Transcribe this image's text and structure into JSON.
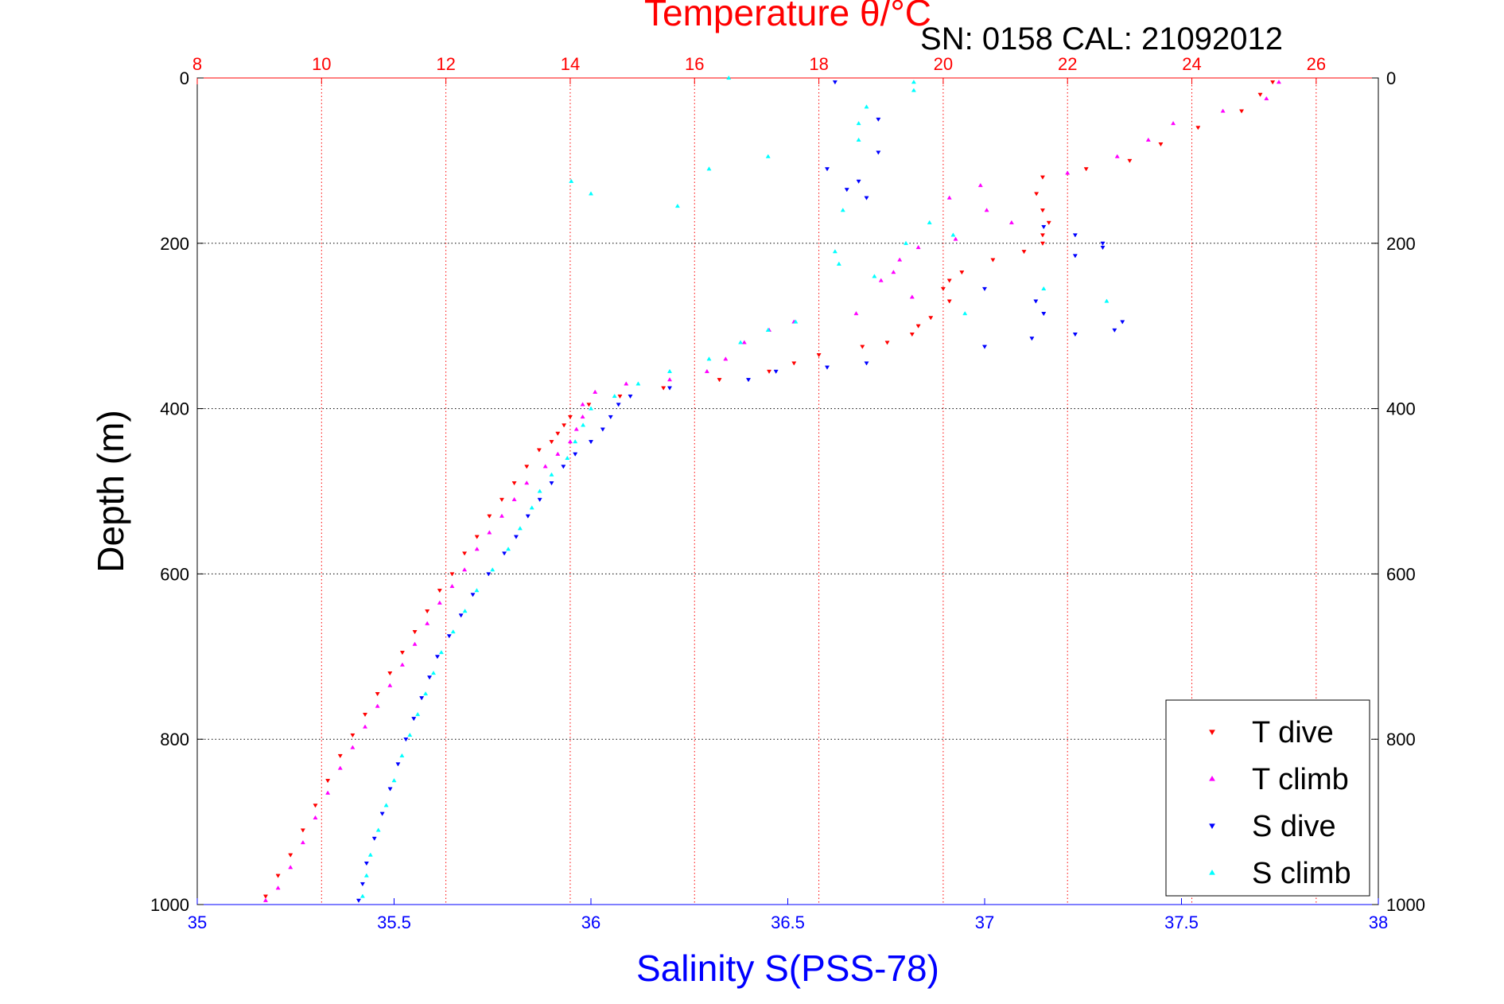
{
  "chart_data": {
    "type": "scatter",
    "title": "Temperature θ/°C",
    "subtitle": "SN: 0158  CAL: 21092012",
    "xlabel_top": "Temperature θ/°C",
    "xlabel_bottom": "Salinity S(PSS-78)",
    "ylabel": "Depth (m)",
    "temp_axis": {
      "range": [
        8,
        27
      ],
      "ticks": [
        8,
        10,
        12,
        14,
        16,
        18,
        20,
        22,
        24,
        26
      ],
      "tick_labels": [
        "8",
        "10",
        "12",
        "14",
        "16",
        "18",
        "20",
        "22",
        "24",
        "26"
      ]
    },
    "sal_axis": {
      "range": [
        35,
        38
      ],
      "ticks": [
        35,
        35.5,
        36,
        36.5,
        37,
        37.5,
        38
      ],
      "tick_labels": [
        "35",
        "35.5",
        "36",
        "36.5",
        "37",
        "37.5",
        "38"
      ]
    },
    "depth_axis": {
      "range": [
        0,
        1000
      ],
      "reversed": true,
      "ticks": [
        0,
        200,
        400,
        600,
        800,
        1000
      ],
      "tick_labels": [
        "0",
        "200",
        "400",
        "600",
        "800",
        "1000"
      ]
    },
    "grid": true,
    "legend_position": "bottom-right",
    "colors": {
      "temp_axis": "#ff0000",
      "sal_axis": "#0000ff",
      "t_dive": "#ff0000",
      "t_climb": "#ff00ff",
      "s_dive": "#0000ff",
      "s_climb": "#00ffff"
    },
    "series": [
      {
        "name": "T dive",
        "axis": "temperature",
        "marker": "triangle-down",
        "points": [
          [
            25.3,
            5
          ],
          [
            25.1,
            20
          ],
          [
            24.8,
            40
          ],
          [
            24.1,
            60
          ],
          [
            23.5,
            80
          ],
          [
            23.0,
            100
          ],
          [
            22.3,
            110
          ],
          [
            21.6,
            120
          ],
          [
            21.5,
            140
          ],
          [
            21.6,
            160
          ],
          [
            21.7,
            175
          ],
          [
            21.6,
            190
          ],
          [
            21.6,
            200
          ],
          [
            21.3,
            210
          ],
          [
            20.8,
            220
          ],
          [
            20.3,
            235
          ],
          [
            20.1,
            245
          ],
          [
            20.0,
            255
          ],
          [
            20.1,
            270
          ],
          [
            19.8,
            290
          ],
          [
            19.6,
            300
          ],
          [
            19.5,
            310
          ],
          [
            19.1,
            320
          ],
          [
            18.7,
            325
          ],
          [
            18.0,
            335
          ],
          [
            17.6,
            345
          ],
          [
            17.2,
            355
          ],
          [
            16.4,
            365
          ],
          [
            15.5,
            375
          ],
          [
            14.8,
            385
          ],
          [
            14.3,
            395
          ],
          [
            14.0,
            410
          ],
          [
            13.9,
            420
          ],
          [
            13.8,
            430
          ],
          [
            13.7,
            440
          ],
          [
            13.5,
            450
          ],
          [
            13.3,
            470
          ],
          [
            13.1,
            490
          ],
          [
            12.9,
            510
          ],
          [
            12.7,
            530
          ],
          [
            12.5,
            555
          ],
          [
            12.3,
            575
          ],
          [
            12.1,
            600
          ],
          [
            11.9,
            620
          ],
          [
            11.7,
            645
          ],
          [
            11.5,
            670
          ],
          [
            11.3,
            695
          ],
          [
            11.1,
            720
          ],
          [
            10.9,
            745
          ],
          [
            10.7,
            770
          ],
          [
            10.5,
            795
          ],
          [
            10.3,
            820
          ],
          [
            10.1,
            850
          ],
          [
            9.9,
            880
          ],
          [
            9.7,
            910
          ],
          [
            9.5,
            940
          ],
          [
            9.3,
            965
          ],
          [
            9.1,
            990
          ]
        ]
      },
      {
        "name": "T climb",
        "axis": "temperature",
        "marker": "triangle-up",
        "points": [
          [
            25.4,
            5
          ],
          [
            25.2,
            25
          ],
          [
            24.5,
            40
          ],
          [
            23.7,
            55
          ],
          [
            23.3,
            75
          ],
          [
            22.8,
            95
          ],
          [
            22.0,
            115
          ],
          [
            20.6,
            130
          ],
          [
            20.1,
            145
          ],
          [
            20.7,
            160
          ],
          [
            21.1,
            175
          ],
          [
            20.2,
            195
          ],
          [
            19.6,
            205
          ],
          [
            19.3,
            220
          ],
          [
            19.2,
            235
          ],
          [
            19.0,
            245
          ],
          [
            19.5,
            265
          ],
          [
            18.6,
            285
          ],
          [
            17.6,
            295
          ],
          [
            17.2,
            305
          ],
          [
            16.8,
            320
          ],
          [
            16.5,
            340
          ],
          [
            16.2,
            355
          ],
          [
            15.6,
            365
          ],
          [
            14.9,
            370
          ],
          [
            14.4,
            380
          ],
          [
            14.2,
            395
          ],
          [
            14.2,
            410
          ],
          [
            14.1,
            425
          ],
          [
            14.0,
            440
          ],
          [
            13.8,
            455
          ],
          [
            13.6,
            470
          ],
          [
            13.3,
            490
          ],
          [
            13.1,
            510
          ],
          [
            12.9,
            530
          ],
          [
            12.7,
            550
          ],
          [
            12.5,
            570
          ],
          [
            12.3,
            595
          ],
          [
            12.1,
            615
          ],
          [
            11.9,
            635
          ],
          [
            11.7,
            660
          ],
          [
            11.5,
            685
          ],
          [
            11.3,
            710
          ],
          [
            11.1,
            735
          ],
          [
            10.9,
            760
          ],
          [
            10.7,
            785
          ],
          [
            10.5,
            810
          ],
          [
            10.3,
            835
          ],
          [
            10.1,
            865
          ],
          [
            9.9,
            895
          ],
          [
            9.7,
            925
          ],
          [
            9.5,
            955
          ],
          [
            9.3,
            980
          ],
          [
            9.1,
            995
          ]
        ]
      },
      {
        "name": "S dive",
        "axis": "salinity",
        "marker": "triangle-down",
        "points": [
          [
            36.62,
            5
          ],
          [
            36.73,
            50
          ],
          [
            36.73,
            90
          ],
          [
            36.6,
            110
          ],
          [
            36.68,
            125
          ],
          [
            36.65,
            135
          ],
          [
            36.7,
            145
          ],
          [
            37.15,
            180
          ],
          [
            37.23,
            190
          ],
          [
            37.3,
            200
          ],
          [
            37.3,
            205
          ],
          [
            37.23,
            215
          ],
          [
            37.0,
            255
          ],
          [
            37.13,
            270
          ],
          [
            37.15,
            285
          ],
          [
            37.35,
            295
          ],
          [
            37.33,
            305
          ],
          [
            37.23,
            310
          ],
          [
            37.12,
            315
          ],
          [
            37.0,
            325
          ],
          [
            36.7,
            345
          ],
          [
            36.6,
            350
          ],
          [
            36.47,
            355
          ],
          [
            36.4,
            365
          ],
          [
            36.2,
            375
          ],
          [
            36.1,
            385
          ],
          [
            36.07,
            395
          ],
          [
            36.05,
            410
          ],
          [
            36.03,
            425
          ],
          [
            36.0,
            440
          ],
          [
            35.96,
            455
          ],
          [
            35.93,
            470
          ],
          [
            35.9,
            490
          ],
          [
            35.87,
            510
          ],
          [
            35.84,
            530
          ],
          [
            35.81,
            555
          ],
          [
            35.78,
            575
          ],
          [
            35.74,
            600
          ],
          [
            35.7,
            625
          ],
          [
            35.67,
            650
          ],
          [
            35.64,
            675
          ],
          [
            35.61,
            700
          ],
          [
            35.59,
            725
          ],
          [
            35.57,
            750
          ],
          [
            35.55,
            775
          ],
          [
            35.53,
            800
          ],
          [
            35.51,
            830
          ],
          [
            35.49,
            860
          ],
          [
            35.47,
            890
          ],
          [
            35.45,
            920
          ],
          [
            35.43,
            950
          ],
          [
            35.42,
            975
          ],
          [
            35.41,
            995
          ]
        ]
      },
      {
        "name": "S climb",
        "axis": "salinity",
        "marker": "triangle-up",
        "points": [
          [
            36.35,
            0
          ],
          [
            36.82,
            5
          ],
          [
            36.82,
            15
          ],
          [
            36.7,
            35
          ],
          [
            36.68,
            55
          ],
          [
            36.68,
            75
          ],
          [
            36.45,
            95
          ],
          [
            36.3,
            110
          ],
          [
            35.95,
            125
          ],
          [
            36.0,
            140
          ],
          [
            36.22,
            155
          ],
          [
            36.64,
            160
          ],
          [
            36.86,
            175
          ],
          [
            36.92,
            190
          ],
          [
            36.8,
            200
          ],
          [
            36.62,
            210
          ],
          [
            36.63,
            225
          ],
          [
            36.72,
            240
          ],
          [
            37.15,
            255
          ],
          [
            37.31,
            270
          ],
          [
            36.95,
            285
          ],
          [
            36.52,
            295
          ],
          [
            36.45,
            305
          ],
          [
            36.38,
            320
          ],
          [
            36.3,
            340
          ],
          [
            36.2,
            355
          ],
          [
            36.12,
            370
          ],
          [
            36.06,
            385
          ],
          [
            36.0,
            400
          ],
          [
            35.98,
            420
          ],
          [
            35.96,
            440
          ],
          [
            35.94,
            460
          ],
          [
            35.9,
            480
          ],
          [
            35.87,
            500
          ],
          [
            35.85,
            520
          ],
          [
            35.82,
            545
          ],
          [
            35.79,
            570
          ],
          [
            35.75,
            595
          ],
          [
            35.71,
            620
          ],
          [
            35.68,
            645
          ],
          [
            35.65,
            670
          ],
          [
            35.62,
            695
          ],
          [
            35.6,
            720
          ],
          [
            35.58,
            745
          ],
          [
            35.56,
            770
          ],
          [
            35.54,
            795
          ],
          [
            35.52,
            820
          ],
          [
            35.5,
            850
          ],
          [
            35.48,
            880
          ],
          [
            35.46,
            910
          ],
          [
            35.44,
            940
          ],
          [
            35.43,
            965
          ],
          [
            35.42,
            990
          ]
        ]
      }
    ]
  }
}
